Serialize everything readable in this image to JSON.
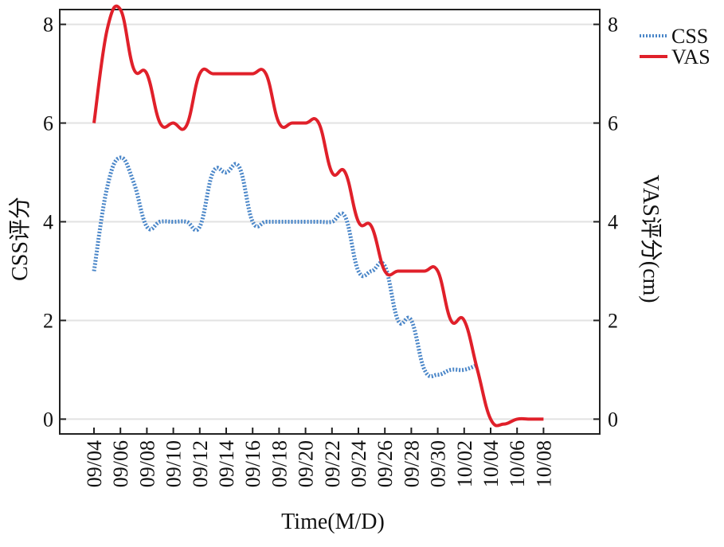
{
  "chart_data": {
    "type": "line",
    "xlabel": "Time(M/D)",
    "ylabel_left": "CSS评分",
    "ylabel_right": "VAS评分(cm)",
    "ylim": [
      -0.3,
      8.3
    ],
    "yticks": [
      0,
      2,
      4,
      6,
      8
    ],
    "xticks": [
      "09/04",
      "09/06",
      "09/08",
      "09/10",
      "09/12",
      "09/14",
      "09/16",
      "09/18",
      "09/20",
      "09/22",
      "09/24",
      "09/26",
      "09/28",
      "09/30",
      "10/02",
      "10/04",
      "10/06",
      "10/08"
    ],
    "grid": "horizontal",
    "legend_position": "top-right",
    "series": [
      {
        "name": "CSS",
        "color": "#4a86c8",
        "style": "dotted",
        "axis": "left",
        "points": [
          [
            "09/04",
            3.0
          ],
          [
            "09/05",
            4.7
          ],
          [
            "09/06",
            5.3
          ],
          [
            "09/07",
            4.8
          ],
          [
            "09/08",
            3.9
          ],
          [
            "09/09",
            4.0
          ],
          [
            "09/10",
            4.0
          ],
          [
            "09/11",
            4.0
          ],
          [
            "09/12",
            3.9
          ],
          [
            "09/13",
            5.0
          ],
          [
            "09/14",
            5.0
          ],
          [
            "09/15",
            5.1
          ],
          [
            "09/16",
            4.0
          ],
          [
            "09/17",
            4.0
          ],
          [
            "09/18",
            4.0
          ],
          [
            "09/19",
            4.0
          ],
          [
            "09/20",
            4.0
          ],
          [
            "09/21",
            4.0
          ],
          [
            "09/22",
            4.0
          ],
          [
            "09/23",
            4.1
          ],
          [
            "09/24",
            3.0
          ],
          [
            "09/25",
            3.0
          ],
          [
            "09/26",
            3.1
          ],
          [
            "09/27",
            2.0
          ],
          [
            "09/28",
            2.0
          ],
          [
            "09/29",
            1.0
          ],
          [
            "09/30",
            0.9
          ],
          [
            "10/01",
            1.0
          ],
          [
            "10/02",
            1.0
          ],
          [
            "10/03",
            1.1
          ]
        ]
      },
      {
        "name": "VAS",
        "color": "#e0202a",
        "style": "solid",
        "axis": "right",
        "points": [
          [
            "09/04",
            6.0
          ],
          [
            "09/05",
            7.9
          ],
          [
            "09/06",
            8.3
          ],
          [
            "09/07",
            7.1
          ],
          [
            "09/08",
            7.0
          ],
          [
            "09/09",
            6.0
          ],
          [
            "09/10",
            6.0
          ],
          [
            "09/11",
            5.95
          ],
          [
            "09/12",
            7.0
          ],
          [
            "09/13",
            7.0
          ],
          [
            "09/14",
            7.0
          ],
          [
            "09/15",
            7.0
          ],
          [
            "09/16",
            7.0
          ],
          [
            "09/17",
            7.0
          ],
          [
            "09/18",
            6.0
          ],
          [
            "09/19",
            6.0
          ],
          [
            "09/20",
            6.0
          ],
          [
            "09/21",
            6.0
          ],
          [
            "09/22",
            5.0
          ],
          [
            "09/23",
            5.0
          ],
          [
            "09/24",
            4.0
          ],
          [
            "09/25",
            3.9
          ],
          [
            "09/26",
            3.0
          ],
          [
            "09/27",
            3.0
          ],
          [
            "09/28",
            3.0
          ],
          [
            "09/29",
            3.0
          ],
          [
            "09/30",
            3.0
          ],
          [
            "10/01",
            2.0
          ],
          [
            "10/02",
            2.0
          ],
          [
            "10/03",
            1.0
          ],
          [
            "10/04",
            0.0
          ],
          [
            "10/05",
            -0.1
          ],
          [
            "10/06",
            0.0
          ],
          [
            "10/07",
            0.0
          ],
          [
            "10/08",
            0.0
          ]
        ]
      }
    ]
  }
}
